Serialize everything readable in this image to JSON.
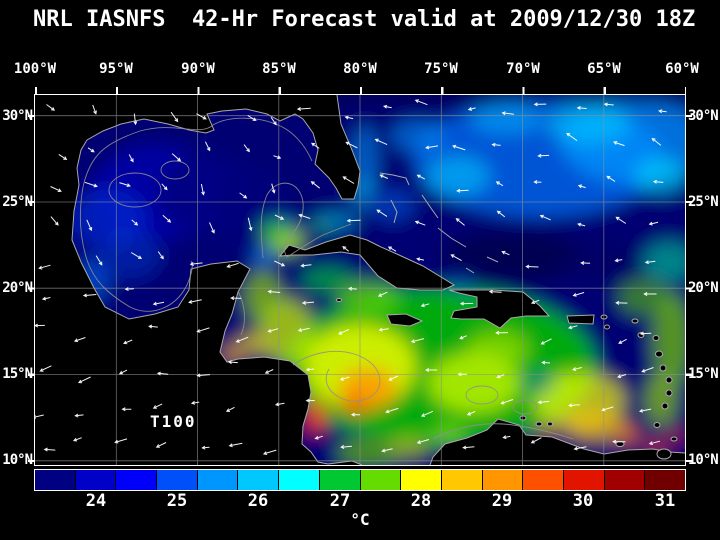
{
  "title": "NRL IASNFS  42-Hr Forecast valid at 2009/12/30 18Z",
  "axes": {
    "lon_labels": [
      "100°W",
      "95°W",
      "90°W",
      "85°W",
      "80°W",
      "75°W",
      "70°W",
      "65°W",
      "60°W"
    ],
    "lat_labels": [
      "30°N",
      "25°N",
      "20°N",
      "15°N",
      "10°N"
    ]
  },
  "map": {
    "field_label": "T100",
    "vectors": {
      "color": "#FFFFFF"
    }
  },
  "colorbar": {
    "unit": "°C",
    "labels": [
      "24",
      "25",
      "26",
      "27",
      "28",
      "29",
      "30",
      "31"
    ],
    "colors": [
      "#000082",
      "#0000C8",
      "#0000FA",
      "#0050FA",
      "#0096FF",
      "#00C8FF",
      "#00FFFF",
      "#00C832",
      "#64DC00",
      "#FFFF00",
      "#FFC800",
      "#FF9600",
      "#FF5000",
      "#E11400",
      "#A00000",
      "#700000"
    ]
  },
  "colors": {
    "background": "#000000",
    "frame": "#FFFFFF",
    "grid": "#909090",
    "coastline": "#A8A8A8",
    "ocean_base": "#000072",
    "text": "#FFFFFF"
  }
}
